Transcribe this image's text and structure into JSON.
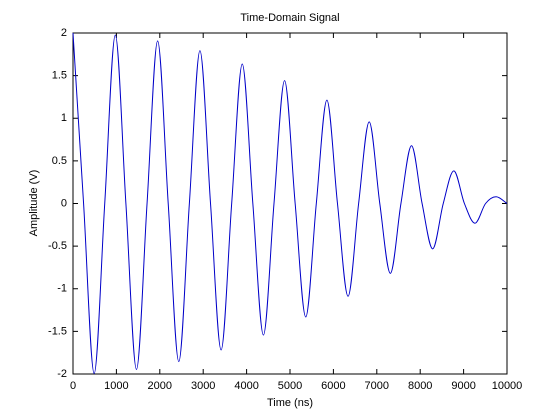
{
  "chart_data": {
    "type": "line",
    "title": "Time-Domain Signal",
    "x_label": "Time (ns)",
    "y_label": "Amplitude (V)",
    "x": [
      0,
      243.75,
      487.5,
      731.25,
      975,
      1218.75,
      1462.5,
      1706.25,
      1950,
      2193.75,
      2437.5,
      2681.25,
      2925,
      3168.75,
      3412.5,
      3656.25,
      3900,
      4143.75,
      4387.5,
      4631.25,
      4875,
      5118.75,
      5362.5,
      5606.25,
      5850,
      6093.75,
      6337.5,
      6581.25,
      6825,
      7068.75,
      7312.5,
      7556.25,
      7800,
      8043.75,
      8287.5,
      8531.25,
      8775,
      9018.75,
      9262.5,
      9506.25,
      9750,
      10000
    ],
    "values": [
      2,
      0,
      -1.994,
      0,
      1.977,
      0,
      -1.947,
      0,
      1.907,
      0,
      -1.855,
      0,
      1.793,
      0,
      -1.719,
      0,
      1.636,
      0,
      -1.544,
      0,
      1.442,
      0,
      -1.331,
      0,
      1.213,
      0,
      -1.088,
      0,
      0.957,
      0,
      -0.819,
      0,
      0.677,
      0,
      -0.532,
      0,
      0.383,
      0,
      -0.231,
      0,
      0.079,
      0
    ],
    "color": "#0000c8",
    "xlim": [
      0,
      10000
    ],
    "xticks": [
      0,
      1000,
      2000,
      3000,
      4000,
      5000,
      6000,
      7000,
      8000,
      9000,
      10000
    ],
    "ylim": [
      -2,
      2
    ],
    "yticks": [
      -2,
      -1.5,
      -1,
      -0.5,
      0,
      0.5,
      1,
      1.5,
      2
    ],
    "grid": false
  }
}
